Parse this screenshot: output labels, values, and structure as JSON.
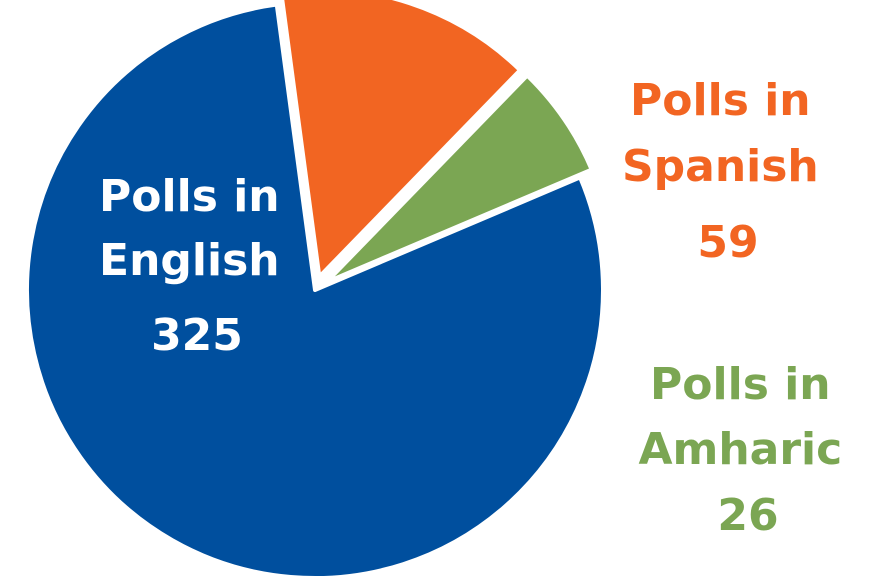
{
  "chart_data": {
    "type": "pie",
    "slices": [
      {
        "label_lines": [
          "Polls in",
          "English"
        ],
        "value": 325,
        "value_text": "325",
        "color": "#004F9E",
        "label_color": "#FFFFFF"
      },
      {
        "label_lines": [
          "Polls in",
          "Spanish"
        ],
        "value": 59,
        "value_text": "59",
        "color": "#F26522",
        "label_color": "#F26522"
      },
      {
        "label_lines": [
          "Polls in",
          "Amharic"
        ],
        "value": 26,
        "value_text": "26",
        "color": "#7BA653",
        "label_color": "#7BA653"
      }
    ],
    "legend": "none"
  }
}
